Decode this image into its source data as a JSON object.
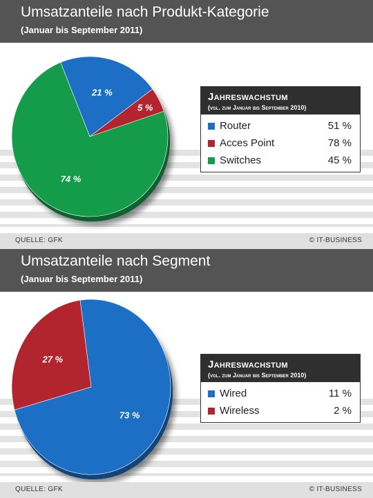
{
  "chart_data": [
    {
      "type": "pie",
      "title": "Umsatzanteile nach Produkt-Kategorie",
      "subtitle": "(Januar bis September 2011)",
      "categories": [
        "Router",
        "Acces Point",
        "Switches"
      ],
      "values": [
        21,
        5,
        74
      ],
      "slice_labels": [
        "21 %",
        "5 %",
        "74 %"
      ],
      "colors": [
        "#1c6fc4",
        "#b3252e",
        "#159c4a"
      ],
      "legend": {
        "title": "Jahreswachstum",
        "subtitle": "(vgl. zum Januar bis September 2010)",
        "entries": [
          {
            "label": "Router",
            "value": "51 %"
          },
          {
            "label": "Acces Point",
            "value": "78 %"
          },
          {
            "label": "Switches",
            "value": "45 %"
          }
        ]
      },
      "source": "QUELLE: GFK",
      "copyright": "© IT-BUSINESS"
    },
    {
      "type": "pie",
      "title": "Umsatzanteile nach Segment",
      "subtitle": "(Januar bis September 2011)",
      "categories": [
        "Wired",
        "Wireless"
      ],
      "values": [
        73,
        27
      ],
      "slice_labels": [
        "73 %",
        "27 %"
      ],
      "colors": [
        "#1c6fc4",
        "#b3252e"
      ],
      "legend": {
        "title": "Jahreswachstum",
        "subtitle": "(vgl. zum Januar bis September 2010)",
        "entries": [
          {
            "label": "Wired",
            "value": "11 %"
          },
          {
            "label": "Wireless",
            "value": "2 %"
          }
        ]
      },
      "source": "QUELLE: GFK",
      "copyright": "© IT-BUSINESS"
    }
  ]
}
